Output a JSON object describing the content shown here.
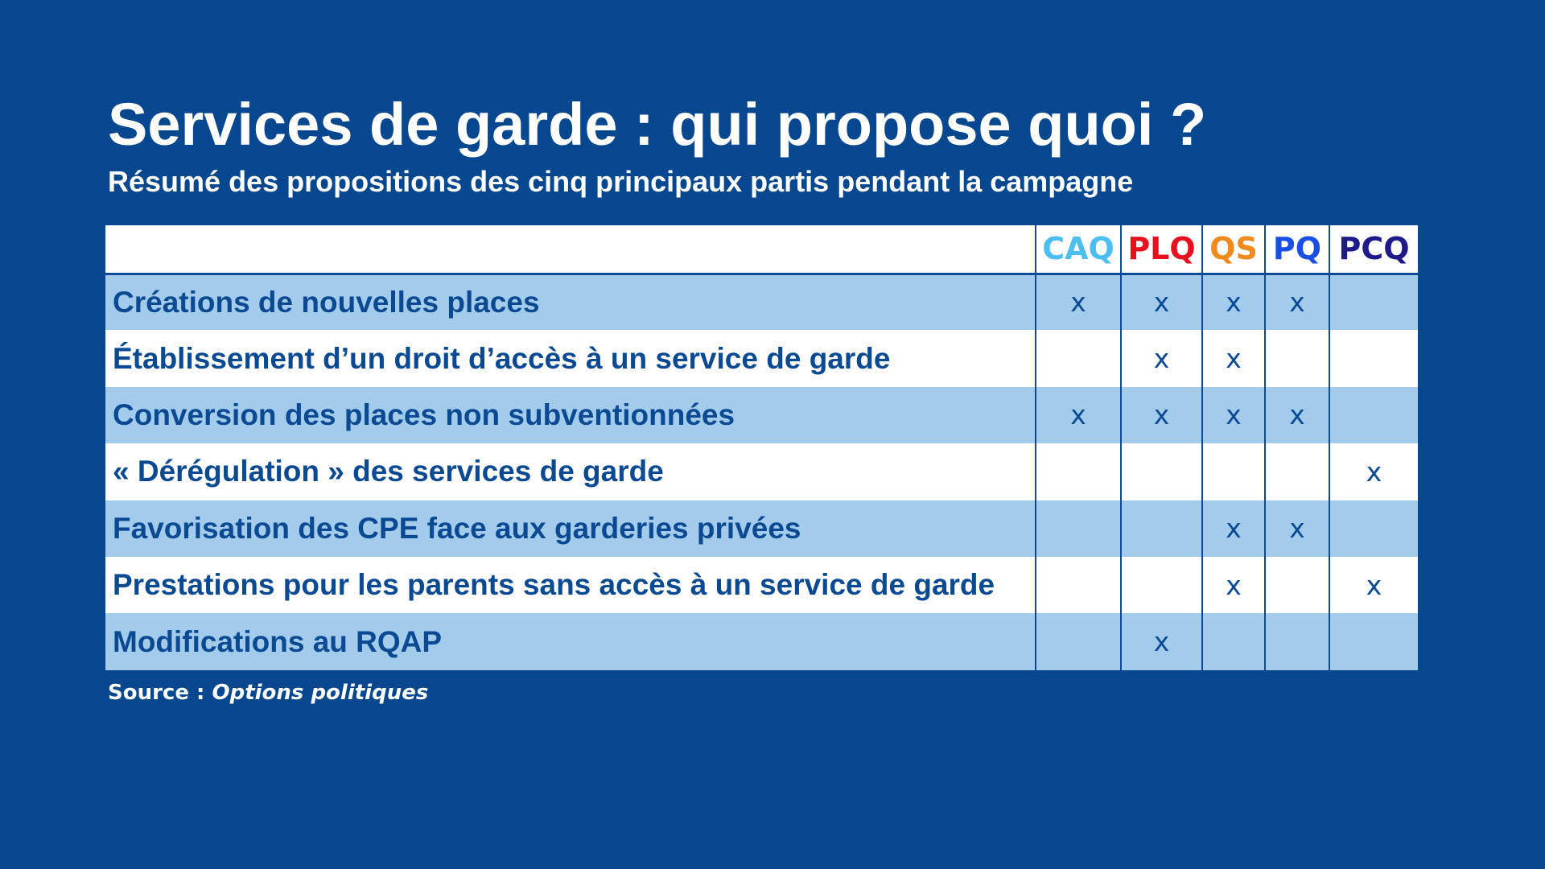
{
  "title": "Services de garde : qui propose quoi ?",
  "subtitle": "Résumé des propositions des cinq principaux partis pendant la campagne",
  "table": {
    "parties": [
      {
        "name": "CAQ",
        "color": "#4cbff0"
      },
      {
        "name": "PLQ",
        "color": "#e6101f"
      },
      {
        "name": "QS",
        "color": "#f08a1c"
      },
      {
        "name": "PQ",
        "color": "#1a4fe6"
      },
      {
        "name": "PCQ",
        "color": "#1e1a8a"
      }
    ],
    "rows": [
      {
        "label": "Créations de nouvelles places",
        "marks": [
          "x",
          "x",
          "x",
          "x",
          ""
        ]
      },
      {
        "label": "Établissement d’un droit d’accès à un service de garde",
        "marks": [
          "",
          "x",
          "x",
          "",
          ""
        ]
      },
      {
        "label": "Conversion des places non subventionnées",
        "marks": [
          "x",
          "x",
          "x",
          "x",
          ""
        ]
      },
      {
        "label": "« Dérégulation » des services de garde",
        "marks": [
          "",
          "",
          "",
          "",
          "x"
        ]
      },
      {
        "label": "Favorisation des CPE face aux garderies privées",
        "marks": [
          "",
          "",
          "x",
          "x",
          ""
        ]
      },
      {
        "label": "Prestations pour les parents sans accès à un service de garde",
        "marks": [
          "",
          "",
          "x",
          "",
          "x"
        ]
      },
      {
        "label": "Modifications au RQAP",
        "marks": [
          "",
          "x",
          "",
          "",
          ""
        ]
      }
    ]
  },
  "source": {
    "label": "Source :",
    "name": "Options politiques"
  },
  "colors": {
    "background": "#06478f",
    "row_alt": "#a3ccec",
    "text": "#0b4a93"
  }
}
